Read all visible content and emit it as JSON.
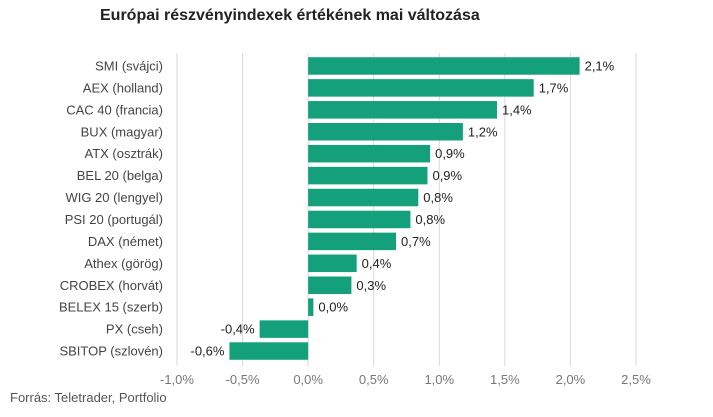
{
  "chart_data": {
    "type": "bar",
    "orientation": "horizontal",
    "title": "Európai részvényindexek értékének mai változása",
    "categories": [
      "SMI (svájci)",
      "AEX (holland)",
      "CAC 40 (francia)",
      "BUX (magyar)",
      "ATX (osztrák)",
      "BEL 20 (belga)",
      "WIG 20 (lengyel)",
      "PSI 20 (portugál)",
      "DAX (német)",
      "Athex (görög)",
      "CROBEX (horvát)",
      "BELEX 15 (szerb)",
      "PX (cseh)",
      "SBITOP (szlovén)"
    ],
    "values": [
      2.07,
      1.72,
      1.44,
      1.18,
      0.93,
      0.91,
      0.84,
      0.78,
      0.67,
      0.37,
      0.33,
      0.04,
      -0.37,
      -0.6
    ],
    "value_labels": [
      "2,1%",
      "1,7%",
      "1,4%",
      "1,2%",
      "0,9%",
      "0,9%",
      "0,8%",
      "0,8%",
      "0,7%",
      "0,4%",
      "0,3%",
      "0,0%",
      "-0,4%",
      "-0,6%"
    ],
    "xlim": [
      -1.0,
      2.5
    ],
    "xticks": [
      -1.0,
      -0.5,
      0.0,
      0.5,
      1.0,
      1.5,
      2.0,
      2.5
    ],
    "xtick_labels": [
      "-1,0%",
      "-0,5%",
      "0,0%",
      "0,5%",
      "1,0%",
      "1,5%",
      "2,0%",
      "2,5%"
    ],
    "grid": "vertical",
    "legend": "none",
    "bar_color": "#14a07a",
    "grid_color": "#d9d9d9"
  },
  "source": "Forrás: Teletrader, Portfolio"
}
